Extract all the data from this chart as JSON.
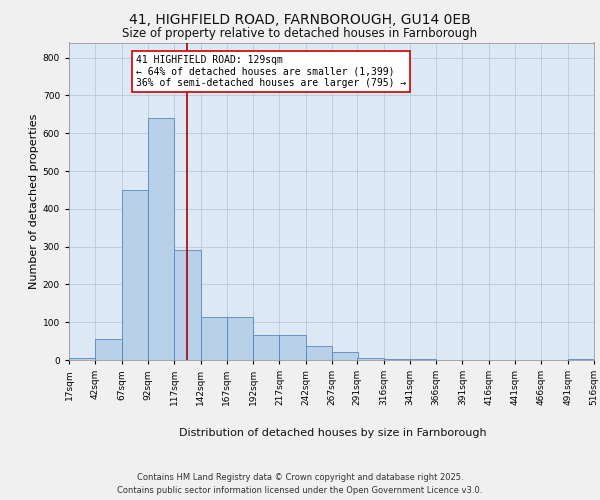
{
  "title1": "41, HIGHFIELD ROAD, FARNBOROUGH, GU14 0EB",
  "title2": "Size of property relative to detached houses in Farnborough",
  "xlabel": "Distribution of detached houses by size in Farnborough",
  "ylabel": "Number of detached properties",
  "footer1": "Contains HM Land Registry data © Crown copyright and database right 2025.",
  "footer2": "Contains public sector information licensed under the Open Government Licence v3.0.",
  "annotation_title": "41 HIGHFIELD ROAD: 129sqm",
  "annotation_line1": "← 64% of detached houses are smaller (1,399)",
  "annotation_line2": "36% of semi-detached houses are larger (795) →",
  "bar_color": "#b8d0e8",
  "bar_edge_color": "#5588bb",
  "bg_color": "#dde8f5",
  "grid_color": "#b8c8dc",
  "vline_color": "#aa0000",
  "vline_x": 129,
  "bin_edges": [
    17,
    42,
    67,
    92,
    117,
    142,
    167,
    192,
    217,
    242,
    267,
    291,
    316,
    341,
    366,
    391,
    416,
    441,
    466,
    491,
    516
  ],
  "bin_heights": [
    5,
    55,
    450,
    640,
    290,
    115,
    115,
    65,
    65,
    38,
    20,
    5,
    2,
    2,
    0,
    0,
    0,
    0,
    0,
    2
  ],
  "ylim": [
    0,
    840
  ],
  "yticks": [
    0,
    100,
    200,
    300,
    400,
    500,
    600,
    700,
    800
  ],
  "xtick_labels": [
    "17sqm",
    "42sqm",
    "67sqm",
    "92sqm",
    "117sqm",
    "142sqm",
    "167sqm",
    "192sqm",
    "217sqm",
    "242sqm",
    "267sqm",
    "291sqm",
    "316sqm",
    "341sqm",
    "366sqm",
    "391sqm",
    "416sqm",
    "441sqm",
    "466sqm",
    "491sqm",
    "516sqm"
  ],
  "annotation_box_color": "#ffffff",
  "annotation_box_edge": "#cc0000",
  "title_fontsize": 10,
  "subtitle_fontsize": 8.5,
  "axis_label_fontsize": 8,
  "tick_fontsize": 6.5,
  "footer_fontsize": 6,
  "annotation_fontsize": 7,
  "fig_bg_color": "#f0f0f0"
}
